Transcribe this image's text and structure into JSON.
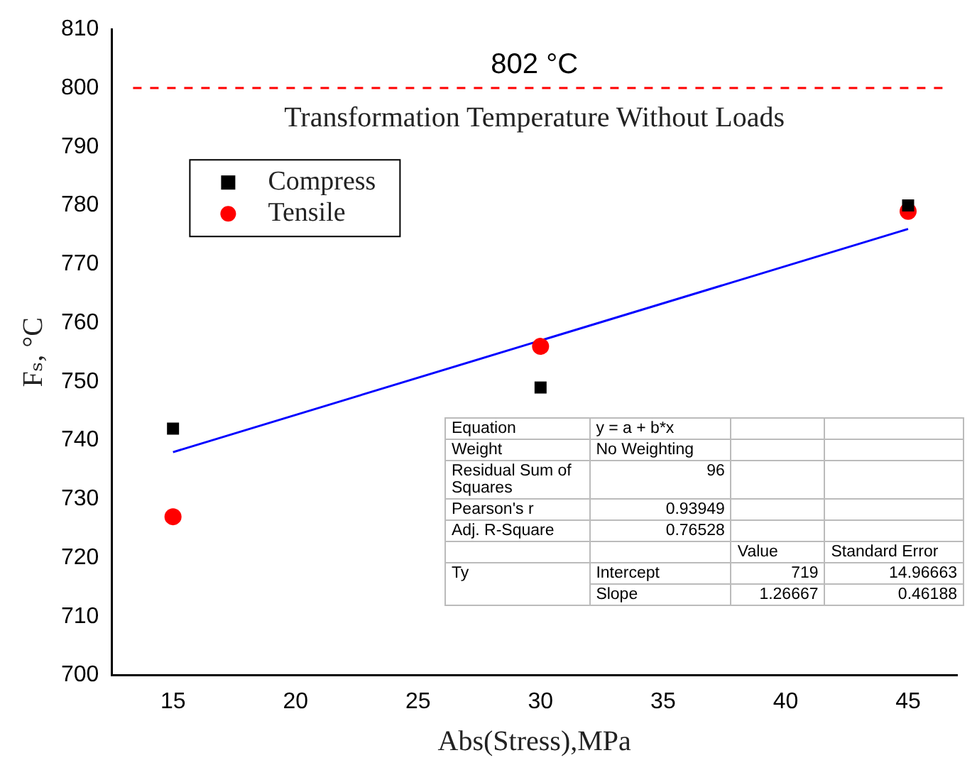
{
  "chart_data": {
    "type": "scatter",
    "xlabel": "Abs(Stress),MPa",
    "ylabel": "Fₛ, °C",
    "xlim": [
      12.5,
      47
    ],
    "xticks": [
      15,
      20,
      25,
      30,
      35,
      40,
      45
    ],
    "ylim": [
      700,
      810
    ],
    "yticks": [
      700,
      710,
      720,
      730,
      740,
      750,
      760,
      770,
      780,
      790,
      800,
      810
    ],
    "grid": false,
    "legend": "top left",
    "series": [
      {
        "name": "Compress",
        "color": "#000000",
        "marker": "square",
        "x": [
          15,
          30,
          45
        ],
        "values": [
          742,
          749,
          780
        ]
      },
      {
        "name": "Tensile",
        "color": "#ff0000",
        "marker": "circle",
        "x": [
          15,
          30,
          45
        ],
        "values": [
          727,
          756,
          779
        ]
      },
      {
        "type": "line",
        "color": "#0000ff",
        "marker": "none",
        "x": [
          15,
          45
        ],
        "values": [
          738,
          776
        ]
      }
    ],
    "ref_lines": [
      {
        "axis": "y",
        "value": 800,
        "label": "802 °C",
        "color": "#ff0000",
        "line_style": "dashed"
      }
    ],
    "annotations": [
      "Transformation Temperature Without Loads",
      "Equation",
      "y = a + b*x",
      "Weight",
      "No Weighting",
      "Residual Sum of Squares",
      "96",
      "Pearson's r",
      "0.93949",
      "Adj. R-Square",
      "0.76528",
      "Value",
      "Standard Error",
      "Ty",
      "Intercept",
      "719",
      "14.96663",
      "Slope",
      "1.26667",
      "0.46188"
    ]
  }
}
